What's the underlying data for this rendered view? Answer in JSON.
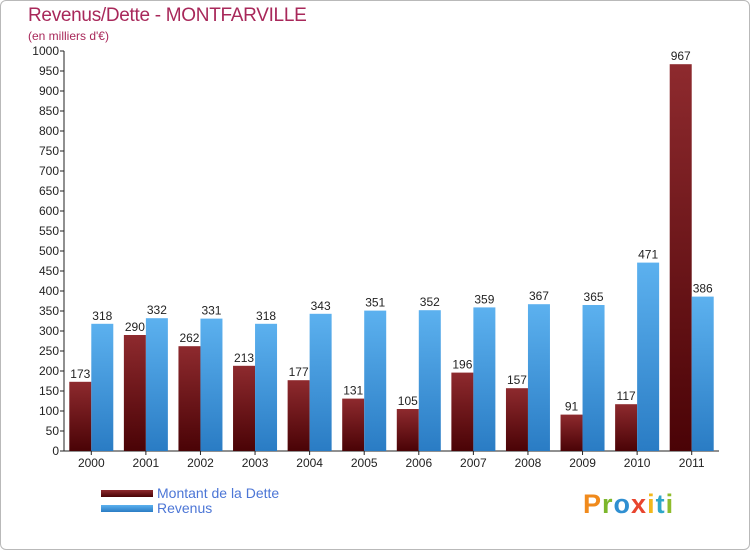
{
  "header": {
    "title": "Revenus/Dette - MONTFARVILLE",
    "subtitle": "(en milliers d'€)"
  },
  "legend": {
    "debt_label": "Montant de la Dette",
    "revenue_label": "Revenus"
  },
  "colors": {
    "debt": "#7a1418",
    "revenue": "#4a9fe3",
    "title": "#a8285a",
    "legend_text": "#4c76d6"
  },
  "logo": {
    "letters": [
      "P",
      "r",
      "o",
      "x",
      "i",
      "t",
      "i"
    ],
    "colors": [
      "#f08a1c",
      "#7cb72c",
      "#2f8fd1",
      "#e8452e",
      "#f2b81c",
      "#2fa7c9",
      "#8fbc2c"
    ]
  },
  "chart_data": {
    "type": "bar",
    "categories": [
      "2000",
      "2001",
      "2002",
      "2003",
      "2004",
      "2005",
      "2006",
      "2007",
      "2008",
      "2009",
      "2010",
      "2011"
    ],
    "series": [
      {
        "name": "Montant de la Dette",
        "values": [
          173,
          290,
          262,
          213,
          177,
          131,
          105,
          196,
          157,
          91,
          117,
          967
        ]
      },
      {
        "name": "Revenus",
        "values": [
          318,
          332,
          331,
          318,
          343,
          351,
          352,
          359,
          367,
          365,
          471,
          386
        ]
      }
    ],
    "ylim": [
      0,
      1000
    ],
    "ytick_step": 50,
    "grid": false,
    "legend_position": "bottom-left"
  }
}
